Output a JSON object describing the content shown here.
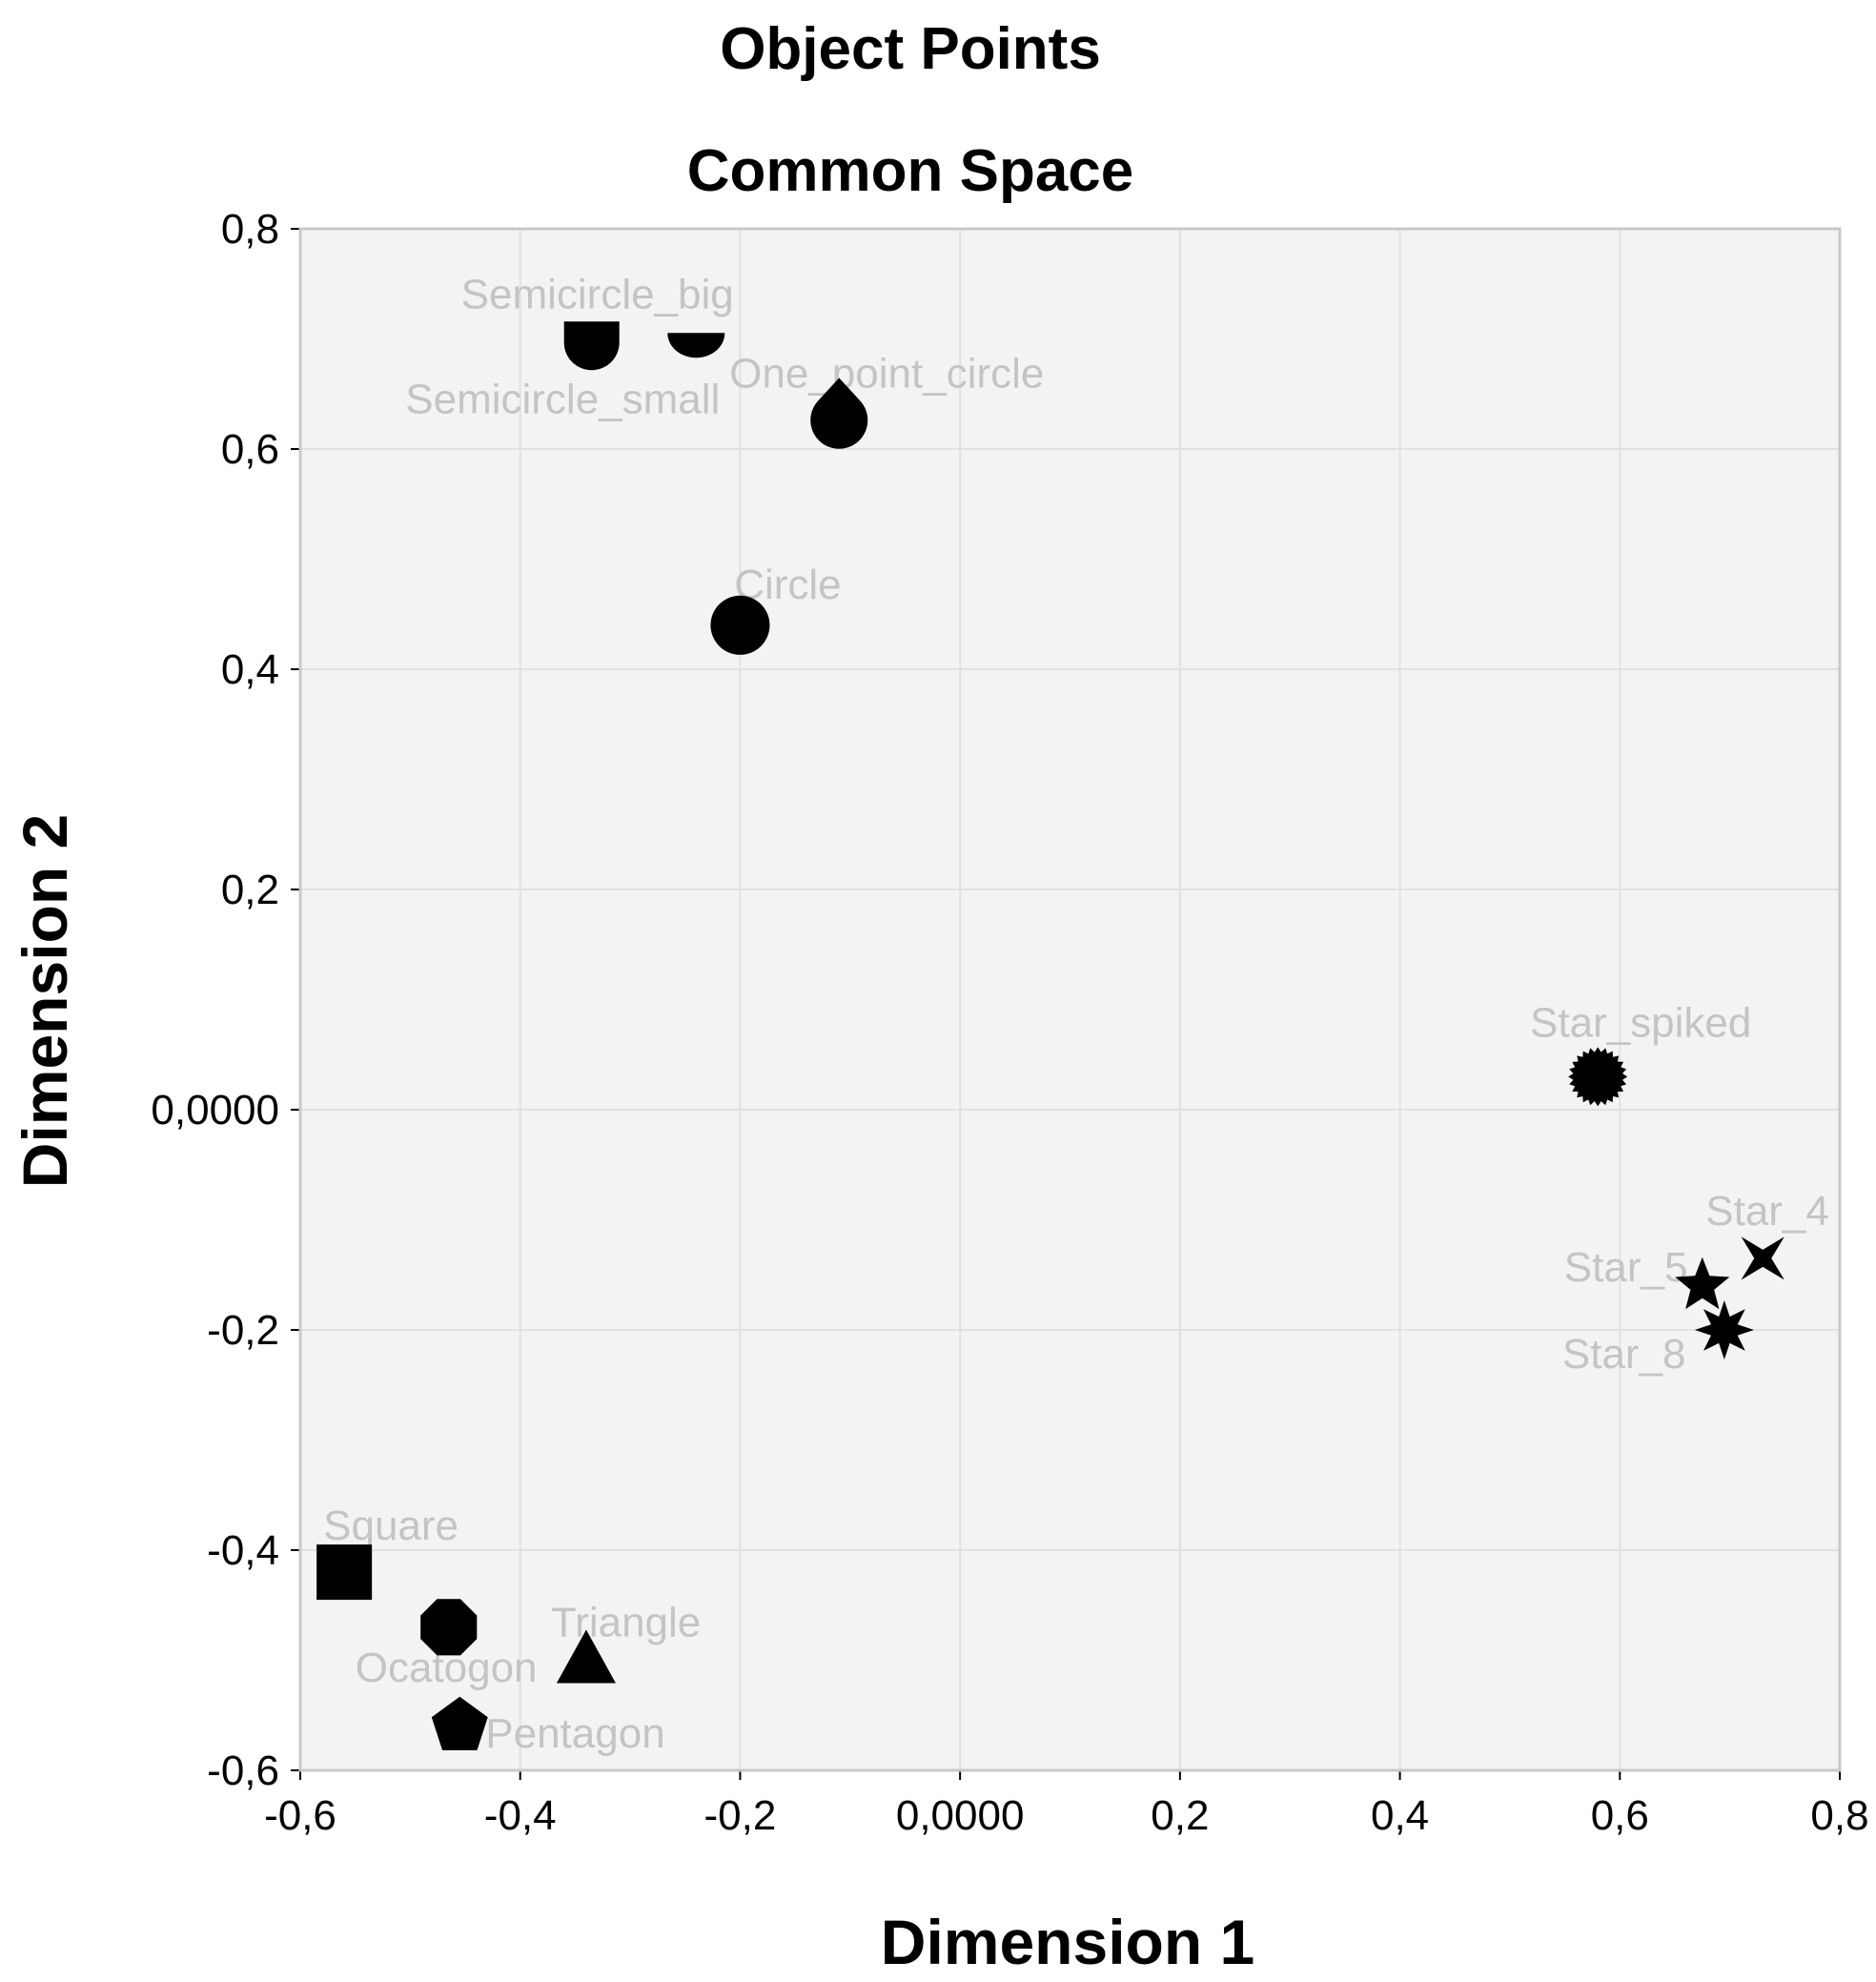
{
  "chart_data": {
    "type": "scatter",
    "title": "Object Points",
    "subtitle": "Common Space",
    "xlabel": "Dimension 1",
    "ylabel": "Dimension 2",
    "xlim": [
      -0.6,
      0.8
    ],
    "ylim": [
      -0.6,
      0.8
    ],
    "grid": true,
    "colors": {
      "plot_background": "#f3f3f3",
      "grid": "#e1e1e1",
      "frame": "#c8c8c8",
      "marker": "#000000",
      "point_label": "#c4c4c4"
    },
    "x_ticks": [
      {
        "value": -0.6,
        "label": "-0,6"
      },
      {
        "value": -0.4,
        "label": "-0,4"
      },
      {
        "value": -0.2,
        "label": "-0,2"
      },
      {
        "value": 0.0,
        "label": "0,0000"
      },
      {
        "value": 0.2,
        "label": "0,2"
      },
      {
        "value": 0.4,
        "label": "0,4"
      },
      {
        "value": 0.6,
        "label": "0,6"
      },
      {
        "value": 0.8,
        "label": "0,8"
      }
    ],
    "y_ticks": [
      {
        "value": 0.8,
        "label": "0,8"
      },
      {
        "value": 0.6,
        "label": "0,6"
      },
      {
        "value": 0.4,
        "label": "0,4"
      },
      {
        "value": 0.2,
        "label": "0,2"
      },
      {
        "value": 0.0,
        "label": "0,0000"
      },
      {
        "value": -0.2,
        "label": "-0,2"
      },
      {
        "value": -0.4,
        "label": "-0,4"
      },
      {
        "value": -0.6,
        "label": "-0,6"
      }
    ],
    "points": [
      {
        "label": "Semicircle_big",
        "x": -0.335,
        "y": 0.695,
        "marker": "semicircle-big"
      },
      {
        "label": "Semicircle_small",
        "x": -0.24,
        "y": 0.695,
        "marker": "semicircle-small"
      },
      {
        "label": "One_point_circle",
        "x": -0.11,
        "y": 0.63,
        "marker": "one-point-circle"
      },
      {
        "label": "Circle",
        "x": -0.2,
        "y": 0.44,
        "marker": "circle"
      },
      {
        "label": "Star_spiked",
        "x": 0.58,
        "y": 0.03,
        "marker": "star-spiked"
      },
      {
        "label": "Star_4",
        "x": 0.73,
        "y": -0.135,
        "marker": "star-4"
      },
      {
        "label": "Star_5",
        "x": 0.675,
        "y": -0.16,
        "marker": "star-5"
      },
      {
        "label": "Star_8",
        "x": 0.695,
        "y": -0.2,
        "marker": "star-8"
      },
      {
        "label": "Square",
        "x": -0.56,
        "y": -0.42,
        "marker": "square"
      },
      {
        "label": "Ocatogon",
        "x": -0.465,
        "y": -0.47,
        "marker": "octagon"
      },
      {
        "label": "Triangle",
        "x": -0.34,
        "y": -0.5,
        "marker": "triangle"
      },
      {
        "label": "Pentagon",
        "x": -0.455,
        "y": -0.56,
        "marker": "pentagon"
      }
    ]
  }
}
